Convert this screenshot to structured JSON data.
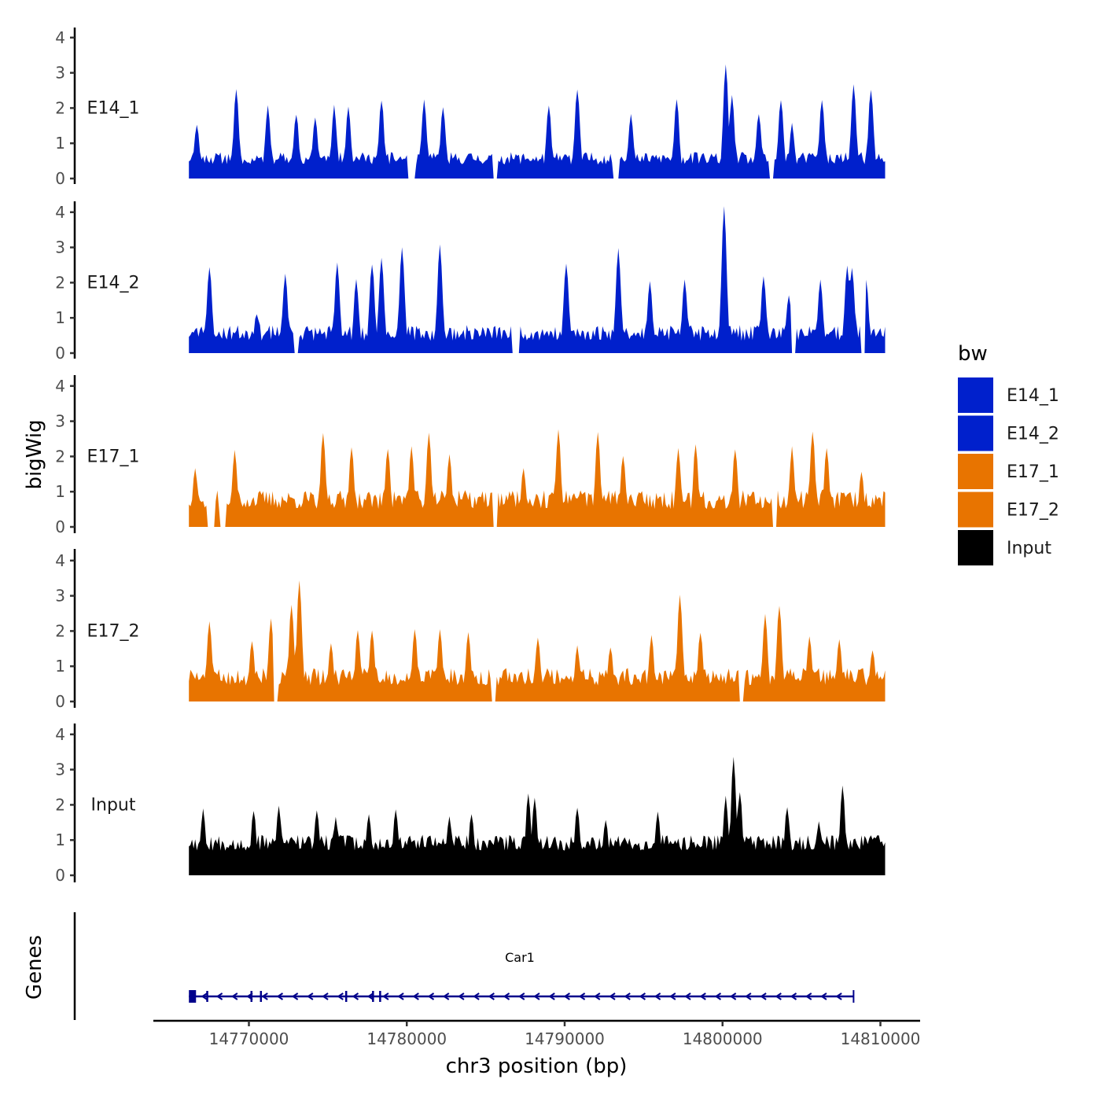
{
  "chart_data": {
    "type": "area",
    "title": "",
    "xlabel": "chr3 position (bp)",
    "ylabel": "bigWig",
    "xlim": [
      14763000,
      14812500
    ],
    "ylim": [
      0,
      4.3
    ],
    "x_ticks": [
      14770000,
      14780000,
      14790000,
      14800000,
      14810000
    ],
    "x_tick_labels": [
      "14770000",
      "14780000",
      "14790000",
      "14800000",
      "14810000"
    ],
    "y_ticks": [
      0,
      1,
      2,
      3,
      4
    ],
    "y_tick_labels": [
      "0",
      "1",
      "2",
      "3",
      "4"
    ],
    "data_range": [
      14766200,
      14810300
    ],
    "legend": {
      "title": "bw",
      "position": "right",
      "entries": [
        {
          "label": "E14_1",
          "color": "#0020CC"
        },
        {
          "label": "E14_2",
          "color": "#0020CC"
        },
        {
          "label": "E17_1",
          "color": "#E87400"
        },
        {
          "label": "E17_2",
          "color": "#E87400"
        },
        {
          "label": "Input",
          "color": "#000000"
        }
      ]
    },
    "series": [
      {
        "name": "E14_1",
        "color": "#0020CC",
        "baseline": 0.4,
        "noise": 0.35,
        "seed": 11,
        "gaps": [
          [
            14780100,
            14780500
          ],
          [
            14785500,
            14785700
          ],
          [
            14793100,
            14793400
          ],
          [
            14803000,
            14803200
          ]
        ],
        "peaks": [
          [
            14766700,
            1.5
          ],
          [
            14769200,
            2.5
          ],
          [
            14771200,
            2.0
          ],
          [
            14773000,
            1.8
          ],
          [
            14774200,
            1.7
          ],
          [
            14775400,
            2.0
          ],
          [
            14776300,
            2.0
          ],
          [
            14778400,
            2.2
          ],
          [
            14781100,
            2.2
          ],
          [
            14782300,
            2.0
          ],
          [
            14789000,
            2.0
          ],
          [
            14790800,
            2.5
          ],
          [
            14794200,
            1.8
          ],
          [
            14797100,
            2.2
          ],
          [
            14800200,
            3.2
          ],
          [
            14800600,
            2.3
          ],
          [
            14802300,
            1.8
          ],
          [
            14803700,
            2.2
          ],
          [
            14804400,
            1.5
          ],
          [
            14806300,
            2.2
          ],
          [
            14808300,
            2.6
          ],
          [
            14809400,
            2.5
          ]
        ]
      },
      {
        "name": "E14_2",
        "color": "#0020CC",
        "baseline": 0.35,
        "noise": 0.45,
        "seed": 23,
        "gaps": [
          [
            14772900,
            14773100
          ],
          [
            14786700,
            14787100
          ],
          [
            14804400,
            14804600
          ],
          [
            14808800,
            14809000
          ]
        ],
        "peaks": [
          [
            14767500,
            2.4
          ],
          [
            14770500,
            1.1
          ],
          [
            14772300,
            2.2
          ],
          [
            14775600,
            2.5
          ],
          [
            14776800,
            2.0
          ],
          [
            14777800,
            2.5
          ],
          [
            14778400,
            2.7
          ],
          [
            14779700,
            3.0
          ],
          [
            14782100,
            3.0
          ],
          [
            14790100,
            2.5
          ],
          [
            14793400,
            2.9
          ],
          [
            14795400,
            2.0
          ],
          [
            14797600,
            2.0
          ],
          [
            14800100,
            4.1
          ],
          [
            14802600,
            2.1
          ],
          [
            14804200,
            1.6
          ],
          [
            14806200,
            2.0
          ],
          [
            14807900,
            2.4
          ],
          [
            14808200,
            2.4
          ],
          [
            14809100,
            2.0
          ]
        ]
      },
      {
        "name": "E17_1",
        "color": "#E87400",
        "baseline": 0.5,
        "noise": 0.55,
        "seed": 37,
        "gaps": [
          [
            14767400,
            14767800
          ],
          [
            14768200,
            14768500
          ],
          [
            14785500,
            14785700
          ],
          [
            14803200,
            14803400
          ]
        ],
        "peaks": [
          [
            14766600,
            1.6
          ],
          [
            14769100,
            2.1
          ],
          [
            14774700,
            2.6
          ],
          [
            14776500,
            2.2
          ],
          [
            14778800,
            2.2
          ],
          [
            14780300,
            2.2
          ],
          [
            14781400,
            2.6
          ],
          [
            14782700,
            2.0
          ],
          [
            14787400,
            1.6
          ],
          [
            14789600,
            2.7
          ],
          [
            14792100,
            2.6
          ],
          [
            14793700,
            2.0
          ],
          [
            14797200,
            2.2
          ],
          [
            14798300,
            2.3
          ],
          [
            14800800,
            2.2
          ],
          [
            14804400,
            2.2
          ],
          [
            14805700,
            2.7
          ],
          [
            14806600,
            2.2
          ],
          [
            14808800,
            1.5
          ]
        ]
      },
      {
        "name": "E17_2",
        "color": "#E87400",
        "baseline": 0.45,
        "noise": 0.5,
        "seed": 51,
        "gaps": [
          [
            14771600,
            14771800
          ],
          [
            14785400,
            14785600
          ],
          [
            14801100,
            14801300
          ]
        ],
        "peaks": [
          [
            14767500,
            2.2
          ],
          [
            14770200,
            1.7
          ],
          [
            14771400,
            2.3
          ],
          [
            14772700,
            2.7
          ],
          [
            14773200,
            3.4
          ],
          [
            14775200,
            1.6
          ],
          [
            14776900,
            2.0
          ],
          [
            14777800,
            2.0
          ],
          [
            14780500,
            2.0
          ],
          [
            14782100,
            2.0
          ],
          [
            14783900,
            1.9
          ],
          [
            14788300,
            1.8
          ],
          [
            14790800,
            1.5
          ],
          [
            14792900,
            1.5
          ],
          [
            14795500,
            1.8
          ],
          [
            14797300,
            3.0
          ],
          [
            14798600,
            1.9
          ],
          [
            14802700,
            2.4
          ],
          [
            14803600,
            2.7
          ],
          [
            14805500,
            1.8
          ],
          [
            14807400,
            1.7
          ],
          [
            14809500,
            1.4
          ]
        ]
      },
      {
        "name": "Input",
        "color": "#000000",
        "baseline": 0.7,
        "noise": 0.45,
        "seed": 67,
        "gaps": [],
        "peaks": [
          [
            14767100,
            1.8
          ],
          [
            14770300,
            1.8
          ],
          [
            14771900,
            1.9
          ],
          [
            14774300,
            1.8
          ],
          [
            14775500,
            1.6
          ],
          [
            14777600,
            1.7
          ],
          [
            14779300,
            1.8
          ],
          [
            14782700,
            1.6
          ],
          [
            14784100,
            1.7
          ],
          [
            14787700,
            2.3
          ],
          [
            14788100,
            2.2
          ],
          [
            14790800,
            1.9
          ],
          [
            14792600,
            1.5
          ],
          [
            14795900,
            1.8
          ],
          [
            14800200,
            2.2
          ],
          [
            14800700,
            3.3
          ],
          [
            14801100,
            2.3
          ],
          [
            14804100,
            1.9
          ],
          [
            14806100,
            1.5
          ],
          [
            14807600,
            2.5
          ]
        ]
      }
    ],
    "genes_panel": {
      "label": "Genes",
      "gene": {
        "name": "Car1",
        "start": 14766200,
        "end": 14808300,
        "strand": "-",
        "color": "#00008B",
        "exons": [
          [
            14766200,
            14766650
          ],
          [
            14767300,
            14767380
          ],
          [
            14770100,
            14770150
          ],
          [
            14770700,
            14770780
          ],
          [
            14776100,
            14776150
          ],
          [
            14777800,
            14777900
          ],
          [
            14778250,
            14778300
          ]
        ]
      }
    }
  }
}
